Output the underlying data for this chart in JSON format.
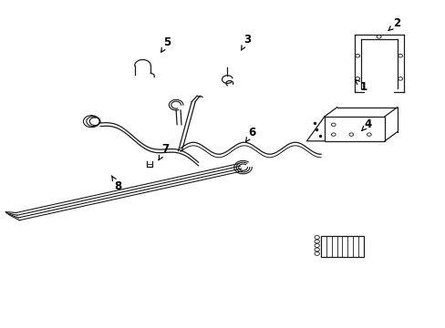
{
  "bg_color": "#ffffff",
  "line_color": "#1a1a1a",
  "figsize": [
    4.89,
    3.6
  ],
  "dpi": 100,
  "labels": {
    "1": {
      "text": "1",
      "tpos": [
        0.815,
        0.735
      ],
      "apos": [
        0.795,
        0.758
      ]
    },
    "2": {
      "text": "2",
      "tpos": [
        0.89,
        0.93
      ],
      "apos": [
        0.87,
        0.905
      ]
    },
    "3": {
      "text": "3",
      "tpos": [
        0.555,
        0.88
      ],
      "apos": [
        0.54,
        0.845
      ]
    },
    "4": {
      "text": "4",
      "tpos": [
        0.825,
        0.62
      ],
      "apos": [
        0.81,
        0.6
      ]
    },
    "5": {
      "text": "5",
      "tpos": [
        0.375,
        0.87
      ],
      "apos": [
        0.36,
        0.838
      ]
    },
    "6": {
      "text": "6",
      "tpos": [
        0.565,
        0.595
      ],
      "apos": [
        0.55,
        0.565
      ]
    },
    "7": {
      "text": "7",
      "tpos": [
        0.37,
        0.545
      ],
      "apos": [
        0.355,
        0.51
      ]
    },
    "8": {
      "text": "8",
      "tpos": [
        0.265,
        0.432
      ],
      "apos": [
        0.25,
        0.465
      ]
    }
  }
}
